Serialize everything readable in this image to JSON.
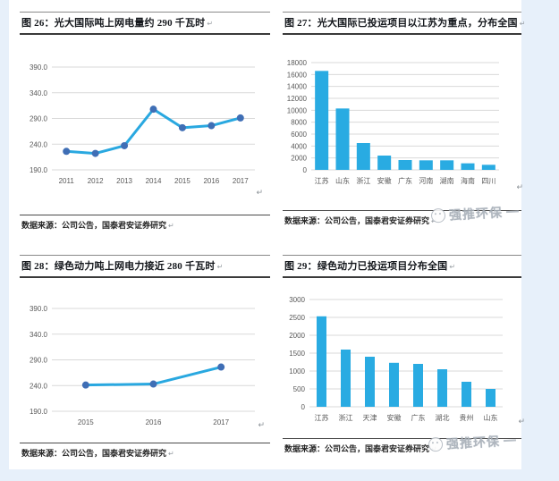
{
  "page": {
    "background_color": "#e7f0fa",
    "paper_color": "#ffffff"
  },
  "marks": {
    "return": "↵"
  },
  "watermark": {
    "text": "强推环保"
  },
  "figures": [
    {
      "title": "图 26：光大国际吨上网电量约 290 千瓦时",
      "source": "数据来源：公司公告，国泰君安证券研究"
    },
    {
      "title": "图 27：光大国际已投运项目以江苏为重点，分布全国",
      "source": "数据来源：公司公告，国泰君安证券研究"
    },
    {
      "title": "图 28：绿色动力吨上网电力接近 280 千瓦时",
      "source": "数据来源：公司公告，国泰君安证券研究"
    },
    {
      "title": "图 29：绿色动力已投运项目分布全国",
      "source": "数据来源：公司公告，国泰君安证券研究"
    }
  ],
  "chart_data": [
    {
      "type": "line",
      "title": "图 26：光大国际吨上网电量约 290 千瓦时",
      "categories": [
        "2011",
        "2012",
        "2013",
        "2014",
        "2015",
        "2016",
        "2017"
      ],
      "values": [
        226,
        222,
        237,
        308,
        272,
        276,
        291
      ],
      "xlabel": "",
      "ylabel": "",
      "ylim": [
        190,
        390
      ],
      "ytick": 50,
      "ytick_format": "one_decimal",
      "grid": true,
      "legend": "none",
      "colors": {
        "line": "#29a8e0",
        "marker": "#3f6eb5"
      }
    },
    {
      "type": "bar",
      "title": "图 27：光大国际已投运项目以江苏为重点，分布全国",
      "categories": [
        "江苏",
        "山东",
        "浙江",
        "安徽",
        "广东",
        "河南",
        "湖南",
        "海南",
        "四川"
      ],
      "values": [
        16600,
        10300,
        4500,
        2400,
        1650,
        1600,
        1600,
        1100,
        850
      ],
      "xlabel": "",
      "ylabel": "",
      "ylim": [
        0,
        18000
      ],
      "ytick": 2000,
      "ytick_format": "integer",
      "grid": true,
      "legend": "none",
      "colors": {
        "bar": "#29abe2"
      }
    },
    {
      "type": "line",
      "title": "图 28：绿色动力吨上网电力接近 280 千瓦时",
      "categories": [
        "2015",
        "2016",
        "2017"
      ],
      "values": [
        241,
        243,
        276
      ],
      "xlabel": "",
      "ylabel": "",
      "ylim": [
        190,
        390
      ],
      "ytick": 50,
      "ytick_format": "one_decimal",
      "grid": true,
      "legend": "none",
      "colors": {
        "line": "#29a8e0",
        "marker": "#3f6eb5"
      }
    },
    {
      "type": "bar",
      "title": "图 29：绿色动力已投运项目分布全国",
      "categories": [
        "江苏",
        "浙江",
        "天津",
        "安徽",
        "广东",
        "湖北",
        "贵州",
        "山东"
      ],
      "values": [
        2530,
        1600,
        1400,
        1230,
        1200,
        1050,
        700,
        500
      ],
      "xlabel": "",
      "ylabel": "",
      "ylim": [
        0,
        3000
      ],
      "ytick": 500,
      "ytick_format": "integer",
      "grid": true,
      "legend": "none",
      "colors": {
        "bar": "#29abe2"
      }
    }
  ]
}
